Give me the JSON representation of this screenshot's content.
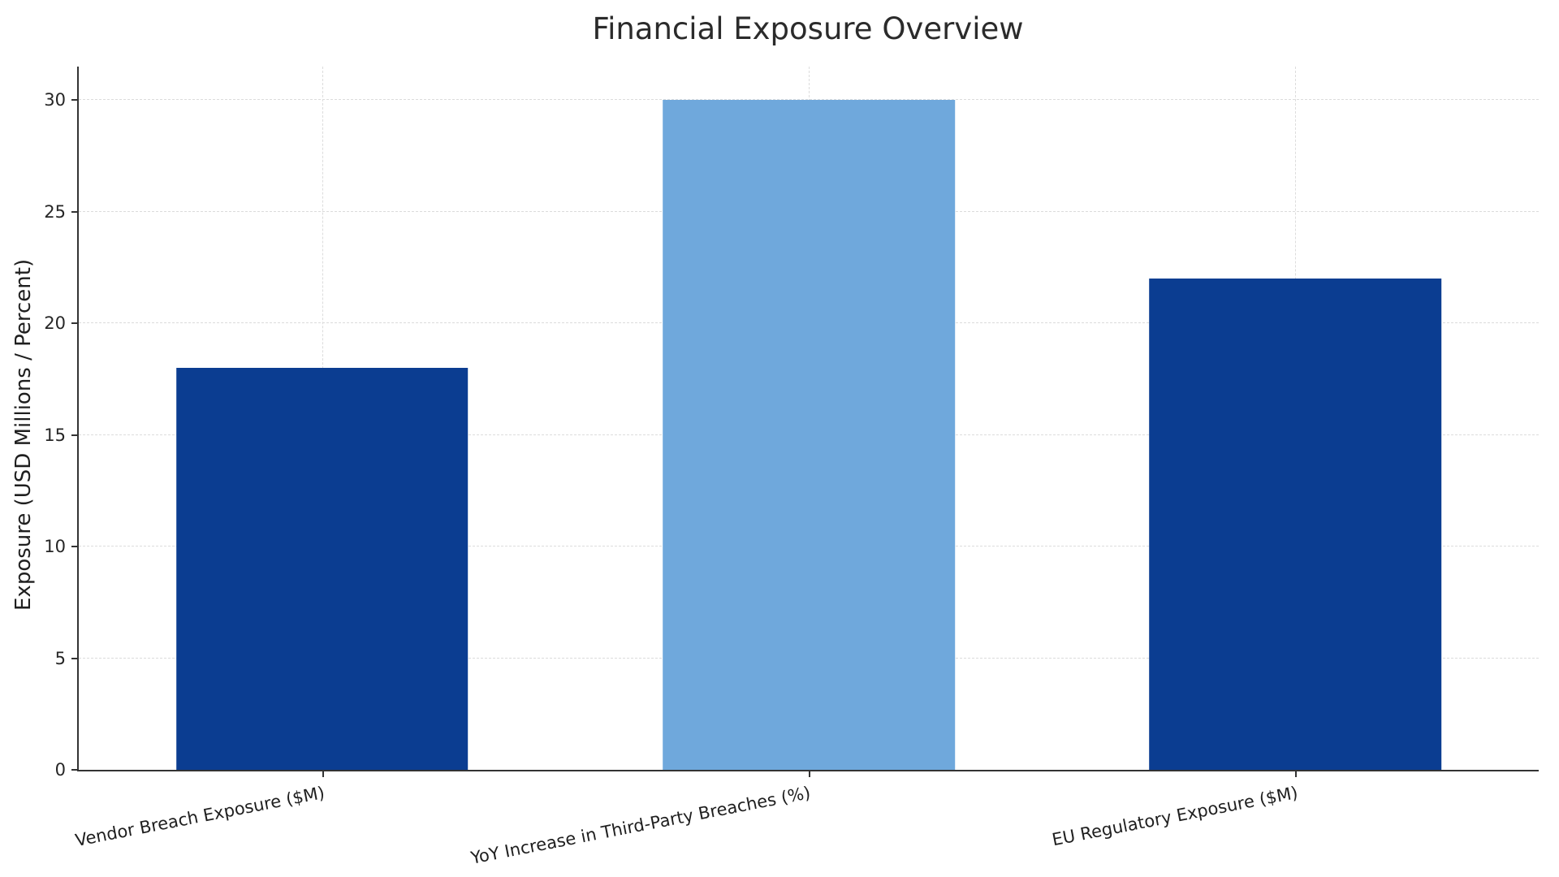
{
  "chart_data": {
    "type": "bar",
    "title": "Financial Exposure Overview",
    "categories": [
      "Vendor Breach Exposure ($M)",
      "YoY Increase in Third-Party Breaches (%)",
      "EU Regulatory Exposure ($M)"
    ],
    "values": [
      18,
      30,
      22
    ],
    "bar_colors": [
      "#0b3d91",
      "#6fa8dc",
      "#0b3d91"
    ],
    "xlabel": "",
    "ylabel": "Exposure (USD Millions / Percent)",
    "ylim": [
      0,
      31.5
    ],
    "yticks": [
      0,
      5,
      10,
      15,
      20,
      25,
      30
    ],
    "grid": true,
    "grid_style": "dashed",
    "legend_position": "none",
    "background_color": "#ffffff",
    "axis_color": "#333333"
  }
}
